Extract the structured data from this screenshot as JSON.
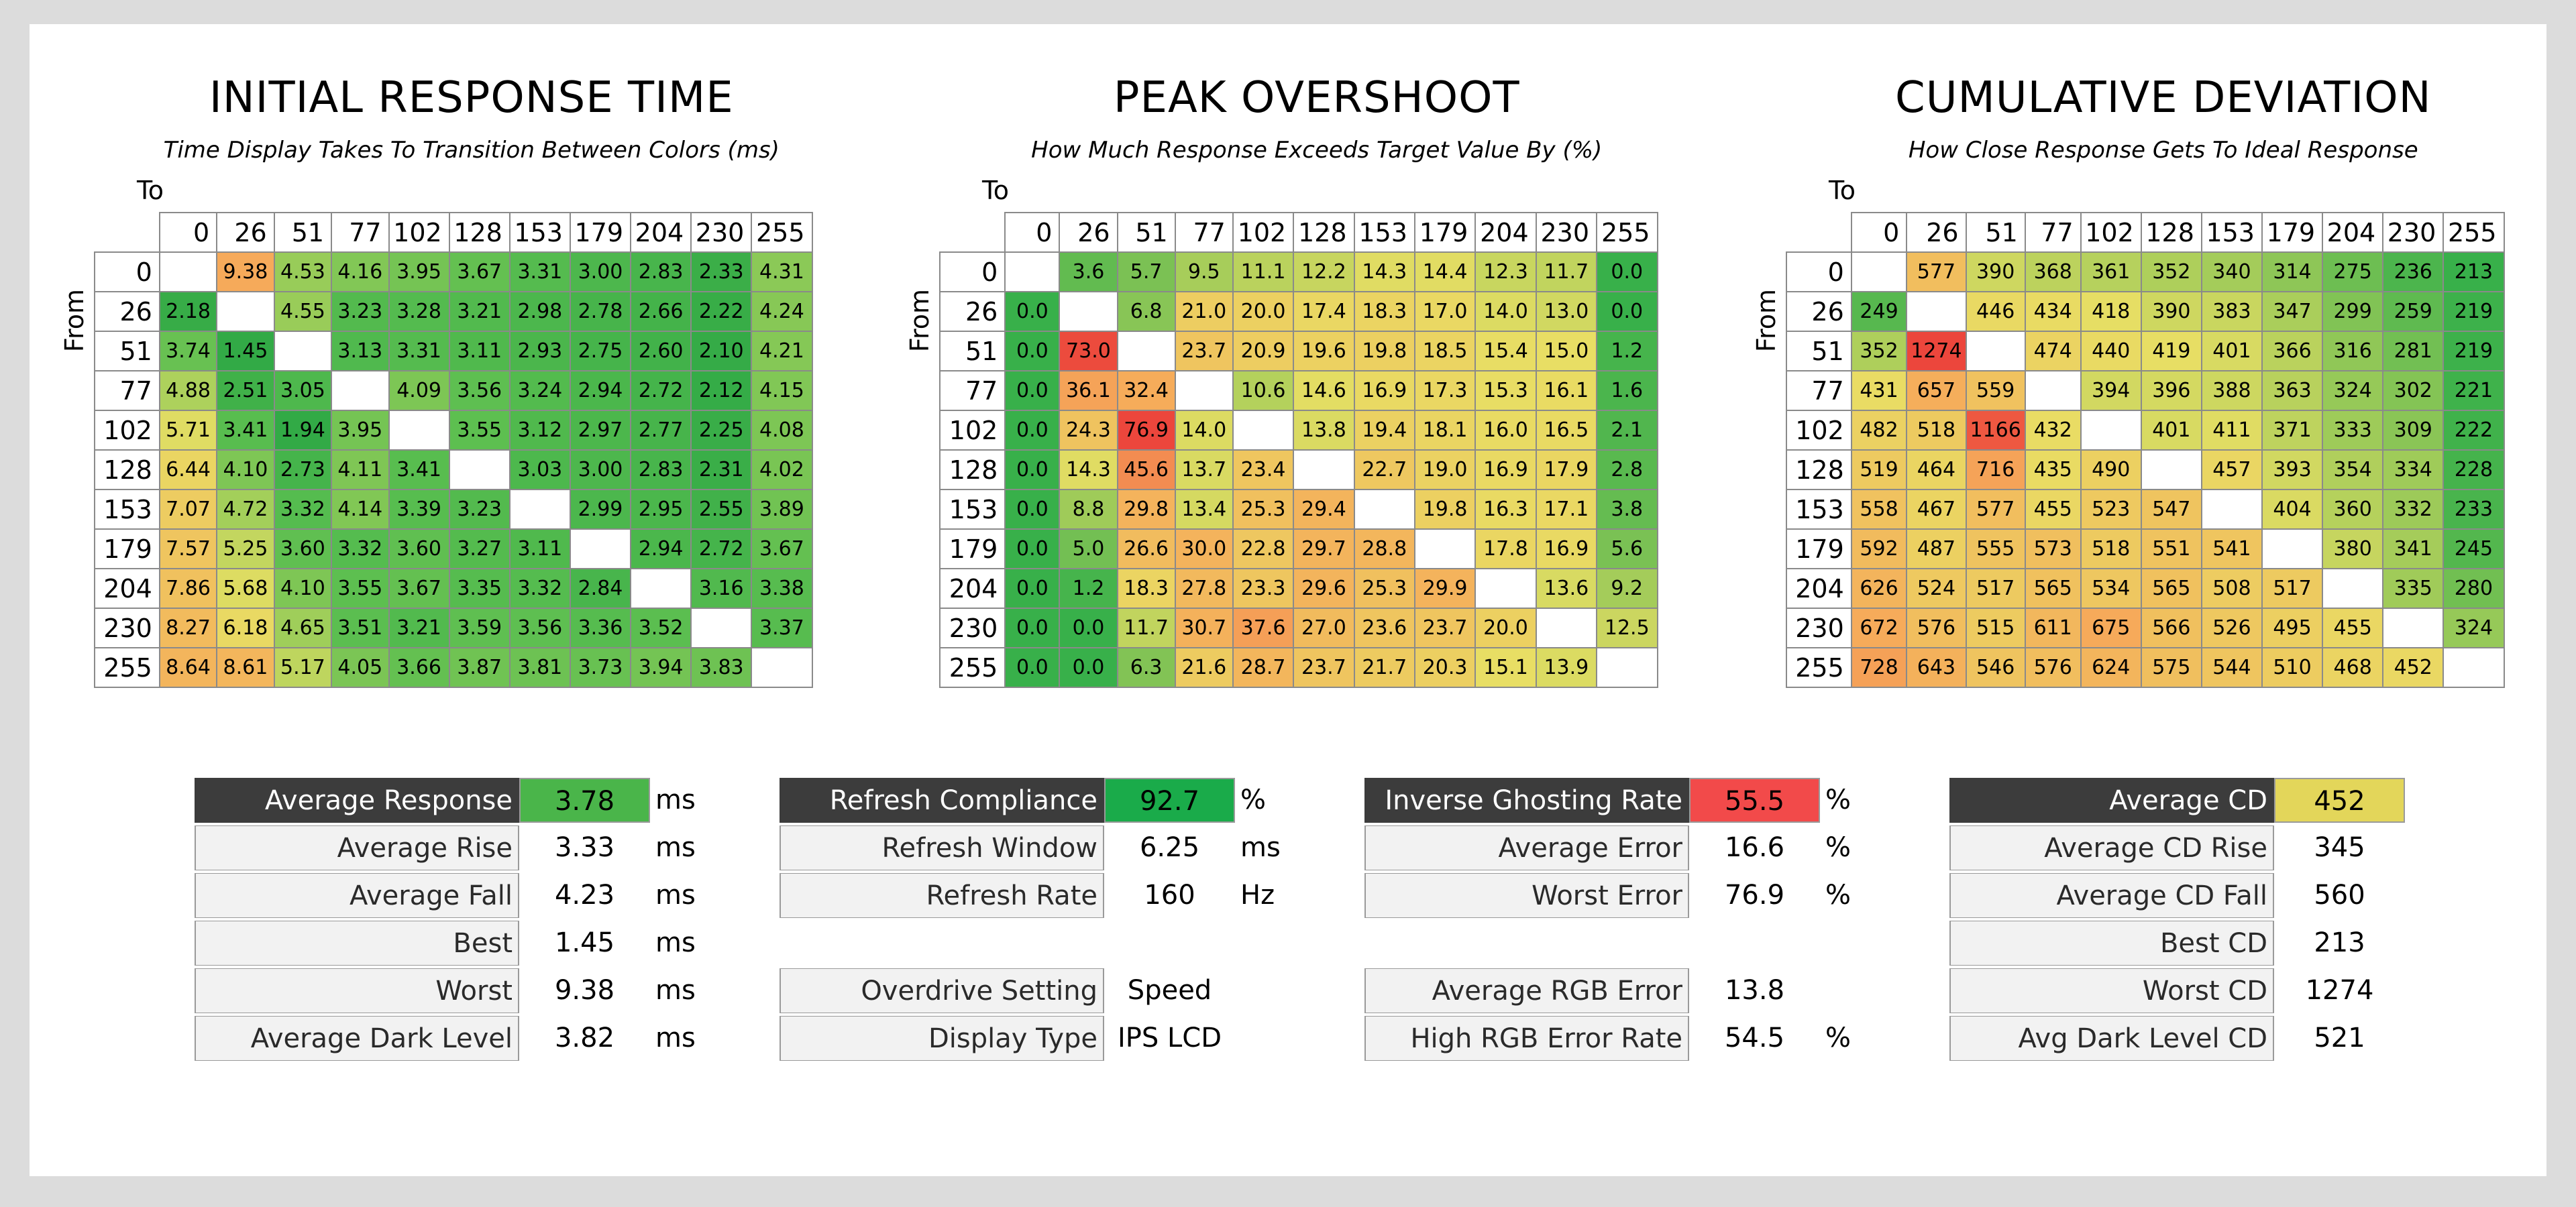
{
  "chart_data": [
    {
      "type": "heatmap",
      "title": "INITIAL RESPONSE TIME",
      "subtitle": "Time Display Takes To Transition Between Colors (ms)",
      "xlabel": "To",
      "ylabel": "From",
      "x": [
        "0",
        "26",
        "51",
        "77",
        "102",
        "128",
        "153",
        "179",
        "204",
        "230",
        "255"
      ],
      "y": [
        "0",
        "26",
        "51",
        "77",
        "102",
        "128",
        "153",
        "179",
        "204",
        "230",
        "255"
      ],
      "values": [
        [
          null,
          "9.38",
          "4.53",
          "4.16",
          "3.95",
          "3.67",
          "3.31",
          "3.00",
          "2.83",
          "2.33",
          "4.31"
        ],
        [
          "2.18",
          null,
          "4.55",
          "3.23",
          "3.28",
          "3.21",
          "2.98",
          "2.78",
          "2.66",
          "2.22",
          "4.24"
        ],
        [
          "3.74",
          "1.45",
          null,
          "3.13",
          "3.31",
          "3.11",
          "2.93",
          "2.75",
          "2.60",
          "2.10",
          "4.21"
        ],
        [
          "4.88",
          "2.51",
          "3.05",
          null,
          "4.09",
          "3.56",
          "3.24",
          "2.94",
          "2.72",
          "2.12",
          "4.15"
        ],
        [
          "5.71",
          "3.41",
          "1.94",
          "3.95",
          null,
          "3.55",
          "3.12",
          "2.97",
          "2.77",
          "2.25",
          "4.08"
        ],
        [
          "6.44",
          "4.10",
          "2.73",
          "4.11",
          "3.41",
          null,
          "3.03",
          "3.00",
          "2.83",
          "2.31",
          "4.02"
        ],
        [
          "7.07",
          "4.72",
          "3.32",
          "4.14",
          "3.39",
          "3.23",
          null,
          "2.99",
          "2.95",
          "2.55",
          "3.89"
        ],
        [
          "7.57",
          "5.25",
          "3.60",
          "3.32",
          "3.60",
          "3.27",
          "3.11",
          null,
          "2.94",
          "2.72",
          "3.67"
        ],
        [
          "7.86",
          "5.68",
          "4.10",
          "3.55",
          "3.67",
          "3.35",
          "3.32",
          "2.84",
          null,
          "3.16",
          "3.38"
        ],
        [
          "8.27",
          "6.18",
          "4.65",
          "3.51",
          "3.21",
          "3.59",
          "3.56",
          "3.36",
          "3.52",
          null,
          "3.37"
        ],
        [
          "8.64",
          "8.61",
          "5.17",
          "4.05",
          "3.66",
          "3.87",
          "3.81",
          "3.73",
          "3.94",
          "3.83",
          null
        ]
      ]
    },
    {
      "type": "heatmap",
      "title": "PEAK OVERSHOOT",
      "subtitle": "How Much Response Exceeds Target Value By (%)",
      "xlabel": "To",
      "ylabel": "From",
      "x": [
        "0",
        "26",
        "51",
        "77",
        "102",
        "128",
        "153",
        "179",
        "204",
        "230",
        "255"
      ],
      "y": [
        "0",
        "26",
        "51",
        "77",
        "102",
        "128",
        "153",
        "179",
        "204",
        "230",
        "255"
      ],
      "values": [
        [
          null,
          "3.6",
          "5.7",
          "9.5",
          "11.1",
          "12.2",
          "14.3",
          "14.4",
          "12.3",
          "11.7",
          "0.0"
        ],
        [
          "0.0",
          null,
          "6.8",
          "21.0",
          "20.0",
          "17.4",
          "18.3",
          "17.0",
          "14.0",
          "13.0",
          "0.0"
        ],
        [
          "0.0",
          "73.0",
          null,
          "23.7",
          "20.9",
          "19.6",
          "19.8",
          "18.5",
          "15.4",
          "15.0",
          "1.2"
        ],
        [
          "0.0",
          "36.1",
          "32.4",
          null,
          "10.6",
          "14.6",
          "16.9",
          "17.3",
          "15.3",
          "16.1",
          "1.6"
        ],
        [
          "0.0",
          "24.3",
          "76.9",
          "14.0",
          null,
          "13.8",
          "19.4",
          "18.1",
          "16.0",
          "16.5",
          "2.1"
        ],
        [
          "0.0",
          "14.3",
          "45.6",
          "13.7",
          "23.4",
          null,
          "22.7",
          "19.0",
          "16.9",
          "17.9",
          "2.8"
        ],
        [
          "0.0",
          "8.8",
          "29.8",
          "13.4",
          "25.3",
          "29.4",
          null,
          "19.8",
          "16.3",
          "17.1",
          "3.8"
        ],
        [
          "0.0",
          "5.0",
          "26.6",
          "30.0",
          "22.8",
          "29.7",
          "28.8",
          null,
          "17.8",
          "16.9",
          "5.6"
        ],
        [
          "0.0",
          "1.2",
          "18.3",
          "27.8",
          "23.3",
          "29.6",
          "25.3",
          "29.9",
          null,
          "13.6",
          "9.2"
        ],
        [
          "0.0",
          "0.0",
          "11.7",
          "30.7",
          "37.6",
          "27.0",
          "23.6",
          "23.7",
          "20.0",
          null,
          "12.5"
        ],
        [
          "0.0",
          "0.0",
          "6.3",
          "21.6",
          "28.7",
          "23.7",
          "21.7",
          "20.3",
          "15.1",
          "13.9",
          null
        ]
      ]
    },
    {
      "type": "heatmap",
      "title": "CUMULATIVE DEVIATION",
      "subtitle": "How Close Response Gets To Ideal Response",
      "xlabel": "To",
      "ylabel": "From",
      "x": [
        "0",
        "26",
        "51",
        "77",
        "102",
        "128",
        "153",
        "179",
        "204",
        "230",
        "255"
      ],
      "y": [
        "0",
        "26",
        "51",
        "77",
        "102",
        "128",
        "153",
        "179",
        "204",
        "230",
        "255"
      ],
      "values": [
        [
          null,
          "577",
          "390",
          "368",
          "361",
          "352",
          "340",
          "314",
          "275",
          "236",
          "213"
        ],
        [
          "249",
          null,
          "446",
          "434",
          "418",
          "390",
          "383",
          "347",
          "299",
          "259",
          "219"
        ],
        [
          "352",
          "1274",
          null,
          "474",
          "440",
          "419",
          "401",
          "366",
          "316",
          "281",
          "219"
        ],
        [
          "431",
          "657",
          "559",
          null,
          "394",
          "396",
          "388",
          "363",
          "324",
          "302",
          "221"
        ],
        [
          "482",
          "518",
          "1166",
          "432",
          null,
          "401",
          "411",
          "371",
          "333",
          "309",
          "222"
        ],
        [
          "519",
          "464",
          "716",
          "435",
          "490",
          null,
          "457",
          "393",
          "354",
          "334",
          "228"
        ],
        [
          "558",
          "467",
          "577",
          "455",
          "523",
          "547",
          null,
          "404",
          "360",
          "332",
          "233"
        ],
        [
          "592",
          "487",
          "555",
          "573",
          "518",
          "551",
          "541",
          null,
          "380",
          "341",
          "245"
        ],
        [
          "626",
          "524",
          "517",
          "565",
          "534",
          "565",
          "508",
          "517",
          null,
          "335",
          "280"
        ],
        [
          "672",
          "576",
          "515",
          "611",
          "675",
          "566",
          "526",
          "495",
          "455",
          null,
          "324"
        ],
        [
          "728",
          "643",
          "546",
          "576",
          "624",
          "575",
          "544",
          "510",
          "468",
          "452",
          null
        ]
      ]
    }
  ],
  "stats": {
    "response": [
      {
        "label": "Average Response",
        "value": "3.78",
        "unit": "ms",
        "highlight": true,
        "color": "#4ab54a"
      },
      {
        "label": "Average Rise",
        "value": "3.33",
        "unit": "ms"
      },
      {
        "label": "Average Fall",
        "value": "4.23",
        "unit": "ms"
      },
      {
        "label": "Best",
        "value": "1.45",
        "unit": "ms"
      },
      {
        "label": "Worst",
        "value": "9.38",
        "unit": "ms"
      },
      {
        "label": "Average Dark Level",
        "value": "3.82",
        "unit": "ms"
      }
    ],
    "refresh": [
      {
        "label": "Refresh Compliance",
        "value": "92.7",
        "unit": "%",
        "highlight": true,
        "color": "#1aab4a"
      },
      {
        "label": "Refresh Window",
        "value": "6.25",
        "unit": "ms"
      },
      {
        "label": "Refresh Rate",
        "value": "160",
        "unit": "Hz"
      },
      null,
      {
        "label": "Overdrive Setting",
        "value": "Speed",
        "unit": ""
      },
      {
        "label": "Display Type",
        "value": "IPS LCD",
        "unit": ""
      }
    ],
    "overshoot": [
      {
        "label": "Inverse Ghosting Rate",
        "value": "55.5",
        "unit": "%",
        "highlight": true,
        "color": "#f24a4a"
      },
      {
        "label": "Average Error",
        "value": "16.6",
        "unit": "%"
      },
      {
        "label": "Worst Error",
        "value": "76.9",
        "unit": "%"
      },
      null,
      {
        "label": "Average RGB Error",
        "value": "13.8",
        "unit": ""
      },
      {
        "label": "High RGB Error Rate",
        "value": "54.5",
        "unit": "%"
      }
    ],
    "cd": [
      {
        "label": "Average CD",
        "value": "452",
        "unit": "",
        "highlight": true,
        "color": "#e3d65a"
      },
      {
        "label": "Average CD Rise",
        "value": "345",
        "unit": ""
      },
      {
        "label": "Average CD Fall",
        "value": "560",
        "unit": ""
      },
      {
        "label": "Best CD",
        "value": "213",
        "unit": ""
      },
      {
        "label": "Worst CD",
        "value": "1274",
        "unit": ""
      },
      {
        "label": "Avg Dark Level CD",
        "value": "521",
        "unit": ""
      }
    ]
  }
}
